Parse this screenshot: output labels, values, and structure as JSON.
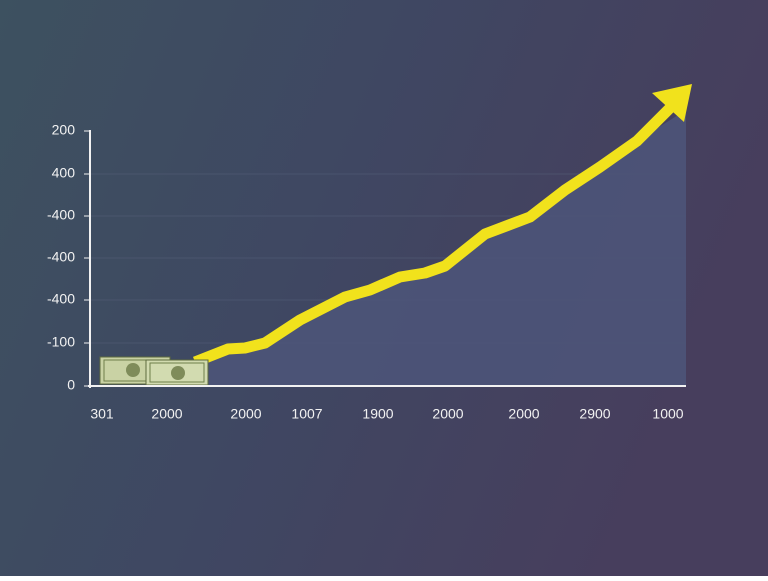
{
  "axis": {
    "y_labels": [
      "200",
      "400",
      "-400",
      "-400",
      "-400",
      "-100",
      "0"
    ],
    "x_labels": [
      "301",
      "2000",
      "2000",
      "1007",
      "1900",
      "2000",
      "2000",
      "2900",
      "1000"
    ]
  }
}
